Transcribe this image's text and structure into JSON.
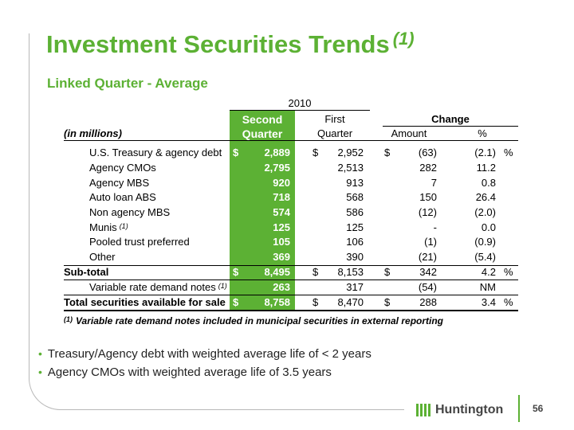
{
  "title": {
    "text": "Investment Securities Trends",
    "sup": "(1)"
  },
  "subtitle": "Linked Quarter - Average",
  "table": {
    "year": "2010",
    "headers": {
      "second_1": "Second",
      "second_2": "Quarter",
      "first_1": "First",
      "first_2": "Quarter",
      "change": "Change",
      "amount": "Amount",
      "pct": "%",
      "units": "(in millions)"
    },
    "rows": [
      {
        "label": "U.S. Treasury & agency debt",
        "sup": "",
        "d1": "$",
        "q2": "2,889",
        "d2": "$",
        "q1": "2,952",
        "d3": "$",
        "amt": "(63)",
        "pct": "(2.1)",
        "ps": "%"
      },
      {
        "label": "Agency CMOs",
        "sup": "",
        "d1": "",
        "q2": "2,795",
        "d2": "",
        "q1": "2,513",
        "d3": "",
        "amt": "282",
        "pct": "11.2",
        "ps": ""
      },
      {
        "label": "Agency MBS",
        "sup": "",
        "d1": "",
        "q2": "920",
        "d2": "",
        "q1": "913",
        "d3": "",
        "amt": "7",
        "pct": "0.8",
        "ps": ""
      },
      {
        "label": "Auto loan ABS",
        "sup": "",
        "d1": "",
        "q2": "718",
        "d2": "",
        "q1": "568",
        "d3": "",
        "amt": "150",
        "pct": "26.4",
        "ps": ""
      },
      {
        "label": "Non agency MBS",
        "sup": "",
        "d1": "",
        "q2": "574",
        "d2": "",
        "q1": "586",
        "d3": "",
        "amt": "(12)",
        "pct": "(2.0)",
        "ps": ""
      },
      {
        "label": "Munis",
        "sup": "(1)",
        "d1": "",
        "q2": "125",
        "d2": "",
        "q1": "125",
        "d3": "",
        "amt": "-",
        "pct": "0.0",
        "ps": ""
      },
      {
        "label": "Pooled trust preferred",
        "sup": "",
        "d1": "",
        "q2": "105",
        "d2": "",
        "q1": "106",
        "d3": "",
        "amt": "(1)",
        "pct": "(0.9)",
        "ps": ""
      },
      {
        "label": "Other",
        "sup": "",
        "d1": "",
        "q2": "369",
        "d2": "",
        "q1": "390",
        "d3": "",
        "amt": "(21)",
        "pct": "(5.4)",
        "ps": ""
      },
      {
        "label": "Sub-total",
        "sup": "",
        "d1": "$",
        "q2": "8,495",
        "d2": "$",
        "q1": "8,153",
        "d3": "$",
        "amt": "342",
        "pct": "4.2",
        "ps": "%"
      },
      {
        "label": "Variable rate demand notes",
        "sup": "(1)",
        "d1": "",
        "q2": "263",
        "d2": "",
        "q1": "317",
        "d3": "",
        "amt": "(54)",
        "pct": "NM",
        "ps": ""
      },
      {
        "label": "Total securities available for sale",
        "sup": "",
        "d1": "$",
        "q2": "8,758",
        "d2": "$",
        "q1": "8,470",
        "d3": "$",
        "amt": "288",
        "pct": "3.4",
        "ps": "%"
      }
    ]
  },
  "footnote": {
    "sup": "(1)",
    "text": "Variable rate demand notes included in municipal securities in external reporting"
  },
  "bullets": [
    "Treasury/Agency debt with weighted average life of < 2 years",
    "Agency CMOs with weighted average life of 3.5 years"
  ],
  "logo": {
    "text": "Huntington"
  },
  "page_number": "56",
  "colors": {
    "accent": "#5cb134"
  }
}
